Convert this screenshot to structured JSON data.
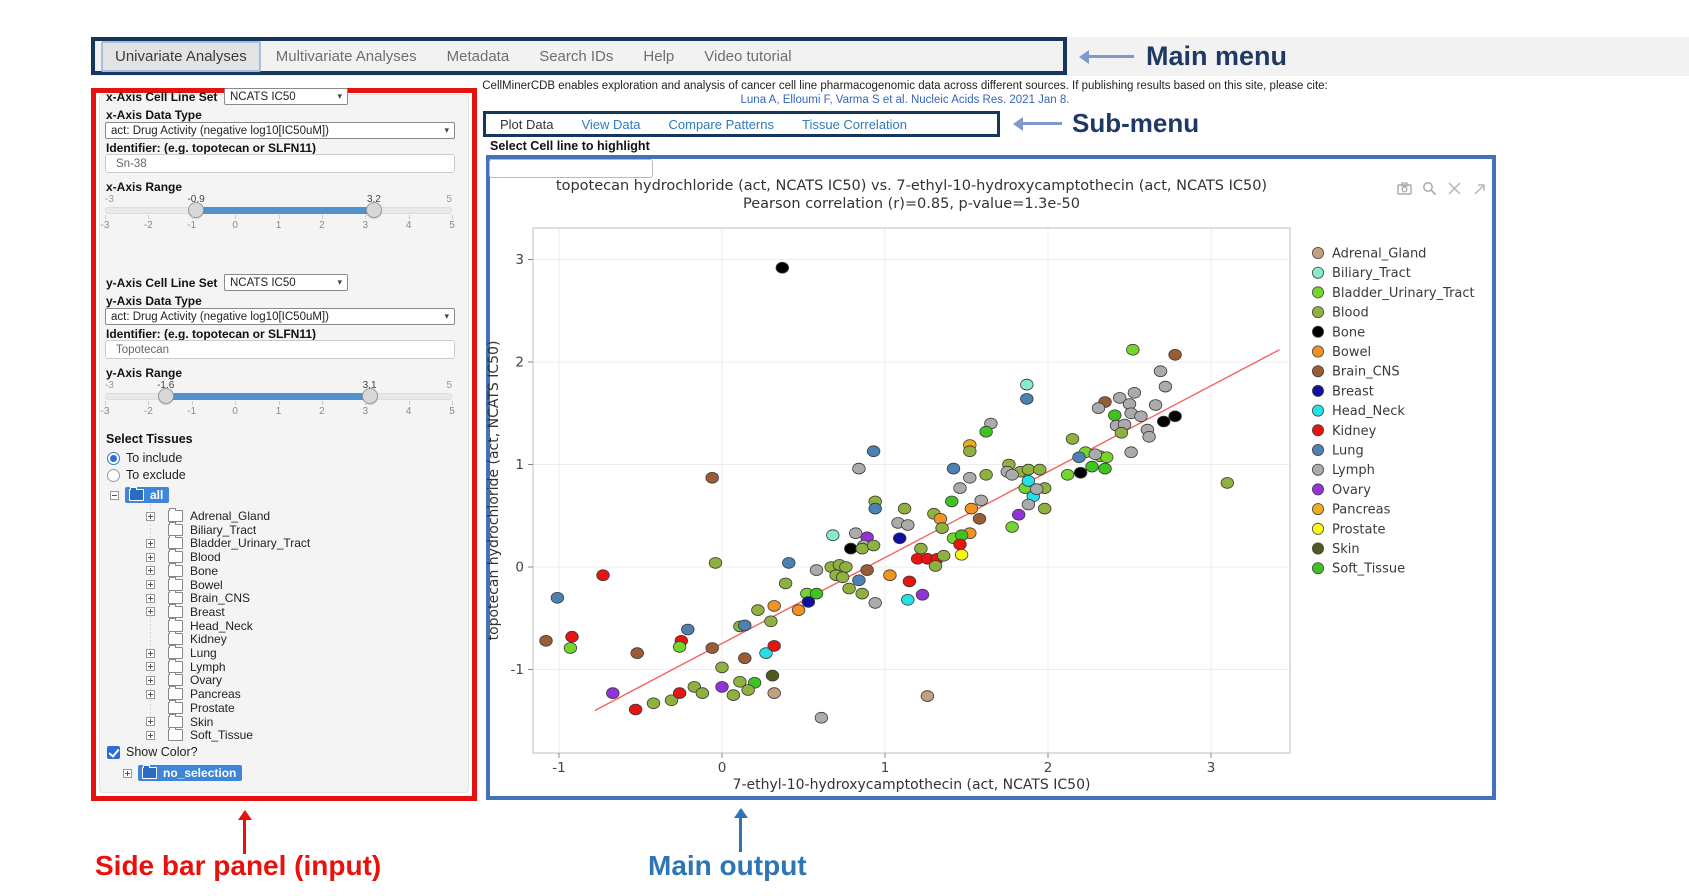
{
  "main_menu": {
    "items": [
      "Univariate Analyses",
      "Multivariate Analyses",
      "Metadata",
      "Search IDs",
      "Help",
      "Video tutorial"
    ],
    "active": "Univariate Analyses"
  },
  "citation": {
    "line1": "CellMinerCDB enables exploration and analysis of cancer cell line pharmacogenomic data across different sources. If publishing results based on this site, please cite:",
    "link": "Luna A, Elloumi F, Varma S et al. Nucleic Acids Res. 2021 Jan 8."
  },
  "sub_menu": {
    "items": [
      "Plot Data",
      "View Data",
      "Compare Patterns",
      "Tissue Correlation"
    ],
    "active": "Plot Data"
  },
  "highlight": {
    "label": "Select Cell line to highlight",
    "value": ""
  },
  "sidebar": {
    "x_axis": {
      "set_label": "x-Axis Cell Line Set",
      "set_value": "NCATS IC50",
      "type_label": "x-Axis Data Type",
      "type_value": "act: Drug Activity (negative log10[IC50uM])",
      "id_label": "Identifier: (e.g. topotecan or SLFN11)",
      "id_value": "Sn-38",
      "range_label": "x-Axis Range",
      "range": {
        "min": -3,
        "max": 5,
        "low": -0.9,
        "high": 3.2,
        "ticks": [
          -3,
          -2,
          -1,
          0,
          1,
          2,
          3,
          4,
          5
        ]
      }
    },
    "y_axis": {
      "set_label": "y-Axis Cell Line Set",
      "set_value": "NCATS IC50",
      "type_label": "y-Axis Data Type",
      "type_value": "act: Drug Activity (negative log10[IC50uM])",
      "id_label": "Identifier: (e.g. topotecan or SLFN11)",
      "id_value": "Topotecan",
      "range_label": "y-Axis Range",
      "range": {
        "min": -3,
        "max": 5,
        "low": -1.6,
        "high": 3.1,
        "ticks": [
          -3,
          -2,
          -1,
          0,
          1,
          2,
          3,
          4,
          5
        ]
      }
    },
    "tissues": {
      "label": "Select Tissues",
      "radio_include": "To include",
      "radio_exclude": "To exclude",
      "include_selected": true,
      "root": "all",
      "items": [
        {
          "name": "Adrenal_Gland",
          "expandable": true
        },
        {
          "name": "Biliary_Tract",
          "expandable": false
        },
        {
          "name": "Bladder_Urinary_Tract",
          "expandable": true
        },
        {
          "name": "Blood",
          "expandable": true
        },
        {
          "name": "Bone",
          "expandable": true
        },
        {
          "name": "Bowel",
          "expandable": true
        },
        {
          "name": "Brain_CNS",
          "expandable": true
        },
        {
          "name": "Breast",
          "expandable": true
        },
        {
          "name": "Head_Neck",
          "expandable": false
        },
        {
          "name": "Kidney",
          "expandable": false
        },
        {
          "name": "Lung",
          "expandable": true
        },
        {
          "name": "Lymph",
          "expandable": true
        },
        {
          "name": "Ovary",
          "expandable": true
        },
        {
          "name": "Pancreas",
          "expandable": true
        },
        {
          "name": "Prostate",
          "expandable": false
        },
        {
          "name": "Skin",
          "expandable": true
        },
        {
          "name": "Soft_Tissue",
          "expandable": true
        }
      ],
      "show_color_label": "Show Color?",
      "show_color_checked": true,
      "no_selection_label": "no_selection"
    }
  },
  "annotations": {
    "main_menu": "Main menu",
    "sub_menu": "Sub-menu",
    "sidebar": "Side bar panel (input)",
    "main_output": "Main output"
  },
  "chart_data": {
    "type": "scatter",
    "title_line1": "topotecan hydrochloride (act, NCATS IC50) vs. 7-ethyl-10-hydroxycamptothecin (act, NCATS IC50)",
    "title_line2": "Pearson correlation (r)=0.85, p-value=1.3e-50",
    "xlabel": "7-ethyl-10-hydroxycamptothecin (act, NCATS IC50)",
    "ylabel": "topotecan hydrochloride (act, NCATS IC50)",
    "x_ticks": [
      -1,
      0,
      1,
      2,
      3
    ],
    "y_ticks": [
      -1,
      0,
      1,
      2,
      3
    ],
    "x_range": [
      -1.16,
      3.48
    ],
    "y_range": [
      -1.81,
      3.32
    ],
    "grid": true,
    "legend_position": "right",
    "trend_line": {
      "x1": -0.78,
      "y1": -1.4,
      "x2": 3.42,
      "y2": 2.12,
      "color": "#F4645F"
    },
    "tissues": [
      {
        "name": "Adrenal_Gland",
        "color": "#C2A07E"
      },
      {
        "name": "Biliary_Tract",
        "color": "#85EBCD"
      },
      {
        "name": "Bladder_Urinary_Tract",
        "color": "#74D62C"
      },
      {
        "name": "Blood",
        "color": "#8FB13D"
      },
      {
        "name": "Bone",
        "color": "#000000"
      },
      {
        "name": "Bowel",
        "color": "#F0941F"
      },
      {
        "name": "Brain_CNS",
        "color": "#9B5C35"
      },
      {
        "name": "Breast",
        "color": "#10109E"
      },
      {
        "name": "Head_Neck",
        "color": "#25E0E8"
      },
      {
        "name": "Kidney",
        "color": "#E81410"
      },
      {
        "name": "Lung",
        "color": "#4C81B3"
      },
      {
        "name": "Lymph",
        "color": "#ABABAB"
      },
      {
        "name": "Ovary",
        "color": "#9232D8"
      },
      {
        "name": "Pancreas",
        "color": "#ECAC1E"
      },
      {
        "name": "Prostate",
        "color": "#F9F715"
      },
      {
        "name": "Skin",
        "color": "#50591F"
      },
      {
        "name": "Soft_Tissue",
        "color": "#3EC31F"
      }
    ],
    "points": [
      [
        0.37,
        2.92,
        4
      ],
      [
        -0.73,
        -0.08,
        9
      ],
      [
        -0.06,
        0.87,
        6
      ],
      [
        -0.04,
        0.04,
        3
      ],
      [
        3.1,
        0.82,
        3
      ],
      [
        2.52,
        2.12,
        2
      ],
      [
        2.78,
        2.07,
        6
      ],
      [
        2.69,
        1.91,
        11
      ],
      [
        2.72,
        1.76,
        11
      ],
      [
        2.53,
        1.7,
        11
      ],
      [
        2.44,
        1.65,
        11
      ],
      [
        2.5,
        1.59,
        11
      ],
      [
        2.66,
        1.58,
        11
      ],
      [
        2.35,
        1.61,
        6
      ],
      [
        2.31,
        1.55,
        11
      ],
      [
        2.51,
        1.5,
        11
      ],
      [
        2.57,
        1.47,
        11
      ],
      [
        2.41,
        1.48,
        16
      ],
      [
        2.71,
        1.42,
        4
      ],
      [
        2.78,
        1.47,
        4
      ],
      [
        2.42,
        1.38,
        11
      ],
      [
        2.47,
        1.39,
        11
      ],
      [
        2.45,
        1.31,
        3
      ],
      [
        2.61,
        1.34,
        11
      ],
      [
        2.62,
        1.27,
        11
      ],
      [
        2.15,
        1.25,
        3
      ],
      [
        2.51,
        1.12,
        11
      ],
      [
        2.23,
        1.12,
        2
      ],
      [
        2.32,
        1.08,
        2
      ],
      [
        2.36,
        1.07,
        2
      ],
      [
        2.29,
        1.1,
        11
      ],
      [
        2.19,
        1.07,
        10
      ],
      [
        2.27,
        0.98,
        16
      ],
      [
        2.35,
        0.96,
        16
      ],
      [
        2.2,
        0.92,
        4
      ],
      [
        2.12,
        0.9,
        2
      ],
      [
        1.87,
        1.78,
        1
      ],
      [
        1.87,
        1.64,
        10
      ],
      [
        1.76,
        1.0,
        3
      ],
      [
        1.83,
        0.93,
        3
      ],
      [
        1.88,
        0.95,
        3
      ],
      [
        1.95,
        0.95,
        3
      ],
      [
        1.86,
        0.77,
        2
      ],
      [
        1.98,
        0.77,
        3
      ],
      [
        1.88,
        0.84,
        8
      ],
      [
        1.91,
        0.69,
        8
      ],
      [
        1.93,
        0.76,
        11
      ],
      [
        1.88,
        0.61,
        11
      ],
      [
        1.98,
        0.57,
        3
      ],
      [
        1.82,
        0.51,
        12
      ],
      [
        1.78,
        0.39,
        2
      ],
      [
        1.65,
        1.4,
        11
      ],
      [
        1.62,
        1.32,
        16
      ],
      [
        1.52,
        1.19,
        13
      ],
      [
        1.52,
        1.13,
        3
      ],
      [
        1.42,
        0.96,
        10
      ],
      [
        1.52,
        0.87,
        11
      ],
      [
        1.62,
        0.9,
        3
      ],
      [
        1.75,
        0.93,
        11
      ],
      [
        1.78,
        0.9,
        11
      ],
      [
        1.46,
        0.77,
        11
      ],
      [
        1.59,
        0.65,
        11
      ],
      [
        1.41,
        0.64,
        16
      ],
      [
        0.93,
        1.13,
        10
      ],
      [
        0.84,
        0.96,
        11
      ],
      [
        1.3,
        0.52,
        3
      ],
      [
        1.34,
        0.47,
        5
      ],
      [
        1.53,
        0.57,
        5
      ],
      [
        1.58,
        0.47,
        6
      ],
      [
        1.35,
        0.38,
        3
      ],
      [
        1.42,
        0.28,
        2
      ],
      [
        1.52,
        0.33,
        5
      ],
      [
        1.47,
        0.31,
        16
      ],
      [
        1.46,
        0.22,
        9
      ],
      [
        1.47,
        0.12,
        14
      ],
      [
        1.2,
        0.08,
        9
      ],
      [
        1.26,
        0.08,
        9
      ],
      [
        1.32,
        0.08,
        9
      ],
      [
        1.31,
        0.01,
        3
      ],
      [
        1.36,
        0.11,
        3
      ],
      [
        1.22,
        0.18,
        3
      ],
      [
        1.12,
        0.57,
        3
      ],
      [
        1.08,
        0.43,
        11
      ],
      [
        1.14,
        0.41,
        11
      ],
      [
        1.09,
        0.28,
        7
      ],
      [
        0.94,
        0.64,
        3
      ],
      [
        0.94,
        0.57,
        10
      ],
      [
        0.89,
        0.29,
        12
      ],
      [
        0.82,
        0.33,
        11
      ],
      [
        0.87,
        0.21,
        11
      ],
      [
        0.79,
        0.18,
        4
      ],
      [
        0.86,
        0.18,
        3
      ],
      [
        0.93,
        0.21,
        3
      ],
      [
        0.68,
        0.31,
        1
      ],
      [
        0.41,
        0.04,
        10
      ],
      [
        0.58,
        -0.03,
        11
      ],
      [
        0.67,
        0.0,
        3
      ],
      [
        0.72,
        0.02,
        3
      ],
      [
        0.76,
        0.0,
        3
      ],
      [
        0.7,
        -0.08,
        3
      ],
      [
        0.74,
        -0.1,
        3
      ],
      [
        0.89,
        -0.03,
        6
      ],
      [
        0.84,
        -0.13,
        10
      ],
      [
        0.78,
        -0.21,
        3
      ],
      [
        0.86,
        -0.26,
        3
      ],
      [
        1.03,
        -0.08,
        5
      ],
      [
        1.15,
        -0.14,
        9
      ],
      [
        1.14,
        -0.32,
        8
      ],
      [
        1.23,
        -0.27,
        12
      ],
      [
        0.94,
        -0.35,
        11
      ],
      [
        0.52,
        -0.26,
        2
      ],
      [
        0.58,
        -0.26,
        16
      ],
      [
        0.53,
        -0.34,
        7
      ],
      [
        0.39,
        -0.16,
        3
      ],
      [
        0.47,
        -0.42,
        5
      ],
      [
        0.32,
        -0.38,
        5
      ],
      [
        0.22,
        -0.42,
        3
      ],
      [
        0.3,
        -0.53,
        3
      ],
      [
        0.11,
        -0.58,
        3
      ],
      [
        0.14,
        -0.57,
        10
      ],
      [
        -0.21,
        -0.61,
        10
      ],
      [
        -0.25,
        -0.72,
        9
      ],
      [
        -0.26,
        -0.78,
        2
      ],
      [
        -0.52,
        -0.84,
        6
      ],
      [
        -0.06,
        -0.79,
        6
      ],
      [
        0.14,
        -0.89,
        6
      ],
      [
        0.27,
        -0.84,
        8
      ],
      [
        0.32,
        -0.77,
        9
      ],
      [
        0.0,
        -0.98,
        3
      ],
      [
        -0.92,
        -0.68,
        9
      ],
      [
        -0.93,
        -0.79,
        2
      ],
      [
        -1.08,
        -0.72,
        6
      ],
      [
        -1.01,
        -0.3,
        10
      ],
      [
        0.11,
        -1.12,
        3
      ],
      [
        0.2,
        -1.13,
        16
      ],
      [
        0.31,
        -1.06,
        15
      ],
      [
        0.32,
        -1.23,
        0
      ],
      [
        -0.17,
        -1.17,
        3
      ],
      [
        -0.12,
        -1.23,
        3
      ],
      [
        0.0,
        -1.17,
        12
      ],
      [
        0.07,
        -1.25,
        3
      ],
      [
        0.16,
        -1.2,
        3
      ],
      [
        -0.31,
        -1.3,
        3
      ],
      [
        -0.26,
        -1.23,
        9
      ],
      [
        -0.42,
        -1.33,
        3
      ],
      [
        -0.53,
        -1.39,
        9
      ],
      [
        -0.67,
        -1.23,
        12
      ],
      [
        0.61,
        -1.47,
        11
      ],
      [
        1.26,
        -1.26,
        0
      ]
    ]
  }
}
